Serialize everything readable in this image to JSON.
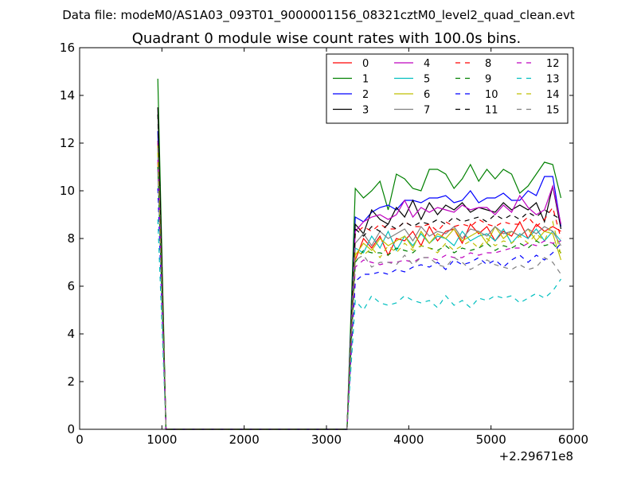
{
  "figure": {
    "supertitle": "Data file: modeM0/AS1A03_093T01_9000001156_08321cztM0_level2_quad_clean.evt"
  },
  "chart_data": {
    "type": "line",
    "title": "Quadrant 0 module wise count rates with 100.0s bins.",
    "xlabel": "",
    "ylabel": "",
    "x_offset_label": "+2.29671e8",
    "xlim": [
      0,
      6000
    ],
    "ylim": [
      0,
      16
    ],
    "xticks": [
      0,
      1000,
      2000,
      3000,
      4000,
      5000,
      6000
    ],
    "yticks": [
      0,
      2,
      4,
      6,
      8,
      10,
      12,
      14,
      16
    ],
    "grid": false,
    "legend_position": "top-right",
    "legend_columns": 4,
    "x": [
      950,
      1050,
      1150,
      1250,
      1350,
      1450,
      1550,
      1650,
      1750,
      1850,
      1950,
      2050,
      2150,
      2250,
      2350,
      2450,
      2550,
      2650,
      2750,
      2850,
      2950,
      3050,
      3150,
      3250,
      3350,
      3450,
      3550,
      3650,
      3750,
      3850,
      3950,
      4050,
      4150,
      4250,
      4350,
      4450,
      4550,
      4650,
      4750,
      4850,
      4950,
      5050,
      5150,
      5250,
      5350,
      5450,
      5550,
      5650,
      5750,
      5850
    ],
    "series": [
      {
        "name": "0",
        "color": "#ff0000",
        "dashed": false,
        "values": [
          12.1,
          0,
          0,
          0,
          0,
          0,
          0,
          0,
          0,
          0,
          0,
          0,
          0,
          0,
          0,
          0,
          0,
          0,
          0,
          0,
          0,
          0,
          0,
          0,
          7.1,
          8.0,
          7.6,
          8.1,
          7.3,
          8.0,
          7.9,
          8.3,
          7.7,
          8.5,
          7.9,
          8.3,
          8.4,
          7.8,
          8.6,
          8.2,
          8.5,
          7.9,
          8.3,
          8.1,
          8.7,
          8.0,
          8.6,
          8.3,
          8.5,
          8.3
        ]
      },
      {
        "name": "1",
        "color": "#008000",
        "dashed": false,
        "values": [
          14.7,
          0,
          0,
          0,
          0,
          0,
          0,
          0,
          0,
          0,
          0,
          0,
          0,
          0,
          0,
          0,
          0,
          0,
          0,
          0,
          0,
          0,
          0,
          0,
          10.1,
          9.7,
          10.0,
          10.4,
          9.2,
          10.7,
          10.5,
          10.1,
          10.0,
          10.9,
          10.9,
          10.7,
          10.1,
          10.5,
          11.1,
          10.4,
          10.9,
          10.5,
          10.9,
          10.7,
          9.9,
          10.2,
          10.7,
          11.2,
          11.1,
          9.7
        ]
      },
      {
        "name": "2",
        "color": "#0000ff",
        "dashed": false,
        "values": [
          12.5,
          0,
          0,
          0,
          0,
          0,
          0,
          0,
          0,
          0,
          0,
          0,
          0,
          0,
          0,
          0,
          0,
          0,
          0,
          0,
          0,
          0,
          0,
          0,
          8.9,
          8.7,
          9.1,
          9.3,
          9.4,
          9.2,
          9.6,
          9.6,
          9.5,
          9.7,
          9.7,
          9.8,
          9.5,
          9.6,
          10.0,
          9.5,
          9.7,
          9.7,
          9.9,
          9.6,
          9.6,
          10.0,
          9.8,
          10.6,
          10.6,
          8.5
        ]
      },
      {
        "name": "3",
        "color": "#000000",
        "dashed": false,
        "values": [
          13.5,
          0,
          0,
          0,
          0,
          0,
          0,
          0,
          0,
          0,
          0,
          0,
          0,
          0,
          0,
          0,
          0,
          0,
          0,
          0,
          0,
          0,
          0,
          0,
          8.6,
          8.2,
          9.2,
          8.8,
          8.6,
          9.3,
          8.9,
          9.6,
          8.8,
          9.5,
          9.0,
          9.4,
          9.2,
          9.5,
          9.1,
          9.3,
          9.2,
          9.1,
          9.5,
          9.2,
          9.4,
          9.2,
          9.5,
          8.7,
          10.2,
          8.4
        ]
      },
      {
        "name": "4",
        "color": "#bf00bf",
        "dashed": false,
        "values": [
          12.0,
          0,
          0,
          0,
          0,
          0,
          0,
          0,
          0,
          0,
          0,
          0,
          0,
          0,
          0,
          0,
          0,
          0,
          0,
          0,
          0,
          0,
          0,
          0,
          8.3,
          8.7,
          8.9,
          9.0,
          8.8,
          9.0,
          9.6,
          8.9,
          9.3,
          9.1,
          9.3,
          9.2,
          9.1,
          9.4,
          9.2,
          9.3,
          9.3,
          9.0,
          9.4,
          9.1,
          9.8,
          9.3,
          9.0,
          9.2,
          10.2,
          8.6
        ]
      },
      {
        "name": "5",
        "color": "#00bfbf",
        "dashed": false,
        "values": [
          11.6,
          0,
          0,
          0,
          0,
          0,
          0,
          0,
          0,
          0,
          0,
          0,
          0,
          0,
          0,
          0,
          0,
          0,
          0,
          0,
          0,
          0,
          0,
          0,
          7.6,
          7.4,
          8.1,
          7.6,
          8.3,
          7.5,
          8.1,
          7.7,
          8.2,
          7.8,
          8.1,
          8.0,
          7.7,
          8.3,
          7.9,
          8.1,
          8.2,
          7.9,
          8.4,
          7.8,
          8.2,
          8.0,
          8.4,
          7.9,
          8.3,
          7.9
        ]
      },
      {
        "name": "6",
        "color": "#bfbf00",
        "dashed": false,
        "values": [
          11.9,
          0,
          0,
          0,
          0,
          0,
          0,
          0,
          0,
          0,
          0,
          0,
          0,
          0,
          0,
          0,
          0,
          0,
          0,
          0,
          0,
          0,
          0,
          0,
          7.3,
          7.8,
          7.5,
          8.0,
          7.7,
          7.9,
          8.1,
          7.6,
          8.3,
          7.8,
          8.2,
          8.0,
          8.4,
          7.9,
          8.1,
          8.3,
          7.8,
          8.5,
          8.0,
          8.3,
          8.1,
          8.4,
          7.9,
          8.3,
          8.2,
          7.1
        ]
      },
      {
        "name": "7",
        "color": "#808080",
        "dashed": false,
        "values": [
          11.8,
          0,
          0,
          0,
          0,
          0,
          0,
          0,
          0,
          0,
          0,
          0,
          0,
          0,
          0,
          0,
          0,
          0,
          0,
          0,
          0,
          0,
          0,
          0,
          7.8,
          8.2,
          7.7,
          8.3,
          8.0,
          8.2,
          8.4,
          7.9,
          8.5,
          8.1,
          8.3,
          8.2,
          8.5,
          8.0,
          8.4,
          8.3,
          8.1,
          8.5,
          8.2,
          8.3,
          8.1,
          8.4,
          8.2,
          8.5,
          8.3,
          7.7
        ]
      },
      {
        "name": "8",
        "color": "#ff0000",
        "dashed": true,
        "values": [
          11.2,
          0,
          0,
          0,
          0,
          0,
          0,
          0,
          0,
          0,
          0,
          0,
          0,
          0,
          0,
          0,
          0,
          0,
          0,
          0,
          0,
          0,
          0,
          0,
          8.2,
          8.5,
          8.3,
          8.6,
          8.4,
          8.4,
          8.7,
          8.5,
          8.5,
          8.6,
          8.3,
          8.7,
          8.5,
          8.6,
          8.5,
          8.8,
          8.6,
          8.5,
          8.7,
          8.6,
          8.6,
          8.9,
          8.5,
          8.8,
          9.3,
          8.0
        ]
      },
      {
        "name": "9",
        "color": "#008000",
        "dashed": true,
        "values": [
          11.0,
          0,
          0,
          0,
          0,
          0,
          0,
          0,
          0,
          0,
          0,
          0,
          0,
          0,
          0,
          0,
          0,
          0,
          0,
          0,
          0,
          0,
          0,
          0,
          7.0,
          7.5,
          7.4,
          7.4,
          7.3,
          7.6,
          7.5,
          7.4,
          7.7,
          7.6,
          7.5,
          7.7,
          7.4,
          7.6,
          7.5,
          7.6,
          7.8,
          7.5,
          7.7,
          7.6,
          7.8,
          7.6,
          7.9,
          7.7,
          7.8,
          7.4
        ]
      },
      {
        "name": "10",
        "color": "#0000ff",
        "dashed": true,
        "values": [
          10.1,
          0,
          0,
          0,
          0,
          0,
          0,
          0,
          0,
          0,
          0,
          0,
          0,
          0,
          0,
          0,
          0,
          0,
          0,
          0,
          0,
          0,
          0,
          0,
          6.2,
          6.5,
          6.5,
          6.6,
          6.5,
          6.7,
          6.6,
          6.8,
          6.9,
          6.8,
          7.0,
          6.7,
          7.1,
          6.9,
          7.0,
          7.2,
          6.9,
          7.1,
          6.8,
          7.1,
          7.3,
          7.0,
          7.3,
          7.1,
          7.4,
          7.8
        ]
      },
      {
        "name": "11",
        "color": "#000000",
        "dashed": true,
        "values": [
          13.2,
          0,
          0,
          0,
          0,
          0,
          0,
          0,
          0,
          0,
          0,
          0,
          0,
          0,
          0,
          0,
          0,
          0,
          0,
          0,
          0,
          0,
          0,
          0,
          8.4,
          8.1,
          8.5,
          8.3,
          8.6,
          8.4,
          8.7,
          8.5,
          8.7,
          8.6,
          8.8,
          8.6,
          8.9,
          8.7,
          8.8,
          8.9,
          8.7,
          9.0,
          8.8,
          9.0,
          8.8,
          9.1,
          8.9,
          9.2,
          9.0,
          8.8
        ]
      },
      {
        "name": "12",
        "color": "#bf00bf",
        "dashed": true,
        "values": [
          11.3,
          0,
          0,
          0,
          0,
          0,
          0,
          0,
          0,
          0,
          0,
          0,
          0,
          0,
          0,
          0,
          0,
          0,
          0,
          0,
          0,
          0,
          0,
          0,
          6.8,
          7.1,
          7.0,
          6.9,
          7.0,
          7.0,
          7.1,
          7.0,
          7.2,
          7.2,
          7.1,
          7.3,
          7.2,
          7.2,
          7.4,
          7.3,
          7.4,
          7.4,
          7.5,
          7.6,
          7.6,
          7.8,
          7.7,
          7.9,
          7.8,
          7.9
        ]
      },
      {
        "name": "13",
        "color": "#00bfbf",
        "dashed": true,
        "values": [
          8.8,
          0,
          0,
          0,
          0,
          0,
          0,
          0,
          0,
          0,
          0,
          0,
          0,
          0,
          0,
          0,
          0,
          0,
          0,
          0,
          0,
          0,
          0,
          0,
          5.4,
          5.0,
          5.6,
          5.3,
          5.2,
          5.3,
          5.6,
          5.4,
          5.3,
          5.4,
          5.1,
          5.6,
          5.2,
          5.4,
          5.1,
          5.5,
          5.4,
          5.6,
          5.5,
          5.6,
          5.3,
          5.5,
          5.7,
          5.5,
          5.8,
          6.3
        ]
      },
      {
        "name": "14",
        "color": "#bfbf00",
        "dashed": true,
        "values": [
          11.6,
          0,
          0,
          0,
          0,
          0,
          0,
          0,
          0,
          0,
          0,
          0,
          0,
          0,
          0,
          0,
          0,
          0,
          0,
          0,
          0,
          0,
          0,
          0,
          7.5,
          7.3,
          7.6,
          7.2,
          7.7,
          7.4,
          7.8,
          7.5,
          7.7,
          7.6,
          7.4,
          7.8,
          7.5,
          7.7,
          7.9,
          7.6,
          8.0,
          7.7,
          7.9,
          7.8,
          8.1,
          7.8,
          8.2,
          7.9,
          8.7,
          7.3
        ]
      },
      {
        "name": "15",
        "color": "#808080",
        "dashed": true,
        "values": [
          10.8,
          0,
          0,
          0,
          0,
          0,
          0,
          0,
          0,
          0,
          0,
          0,
          0,
          0,
          0,
          0,
          0,
          0,
          0,
          0,
          0,
          0,
          0,
          0,
          7.1,
          7.3,
          6.8,
          7.0,
          7.0,
          6.9,
          7.3,
          6.9,
          7.2,
          7.2,
          6.9,
          6.8,
          7.2,
          7.0,
          6.7,
          6.9,
          7.1,
          6.9,
          6.8,
          6.7,
          6.9,
          6.7,
          6.8,
          7.2,
          7.0,
          6.5
        ]
      }
    ]
  }
}
